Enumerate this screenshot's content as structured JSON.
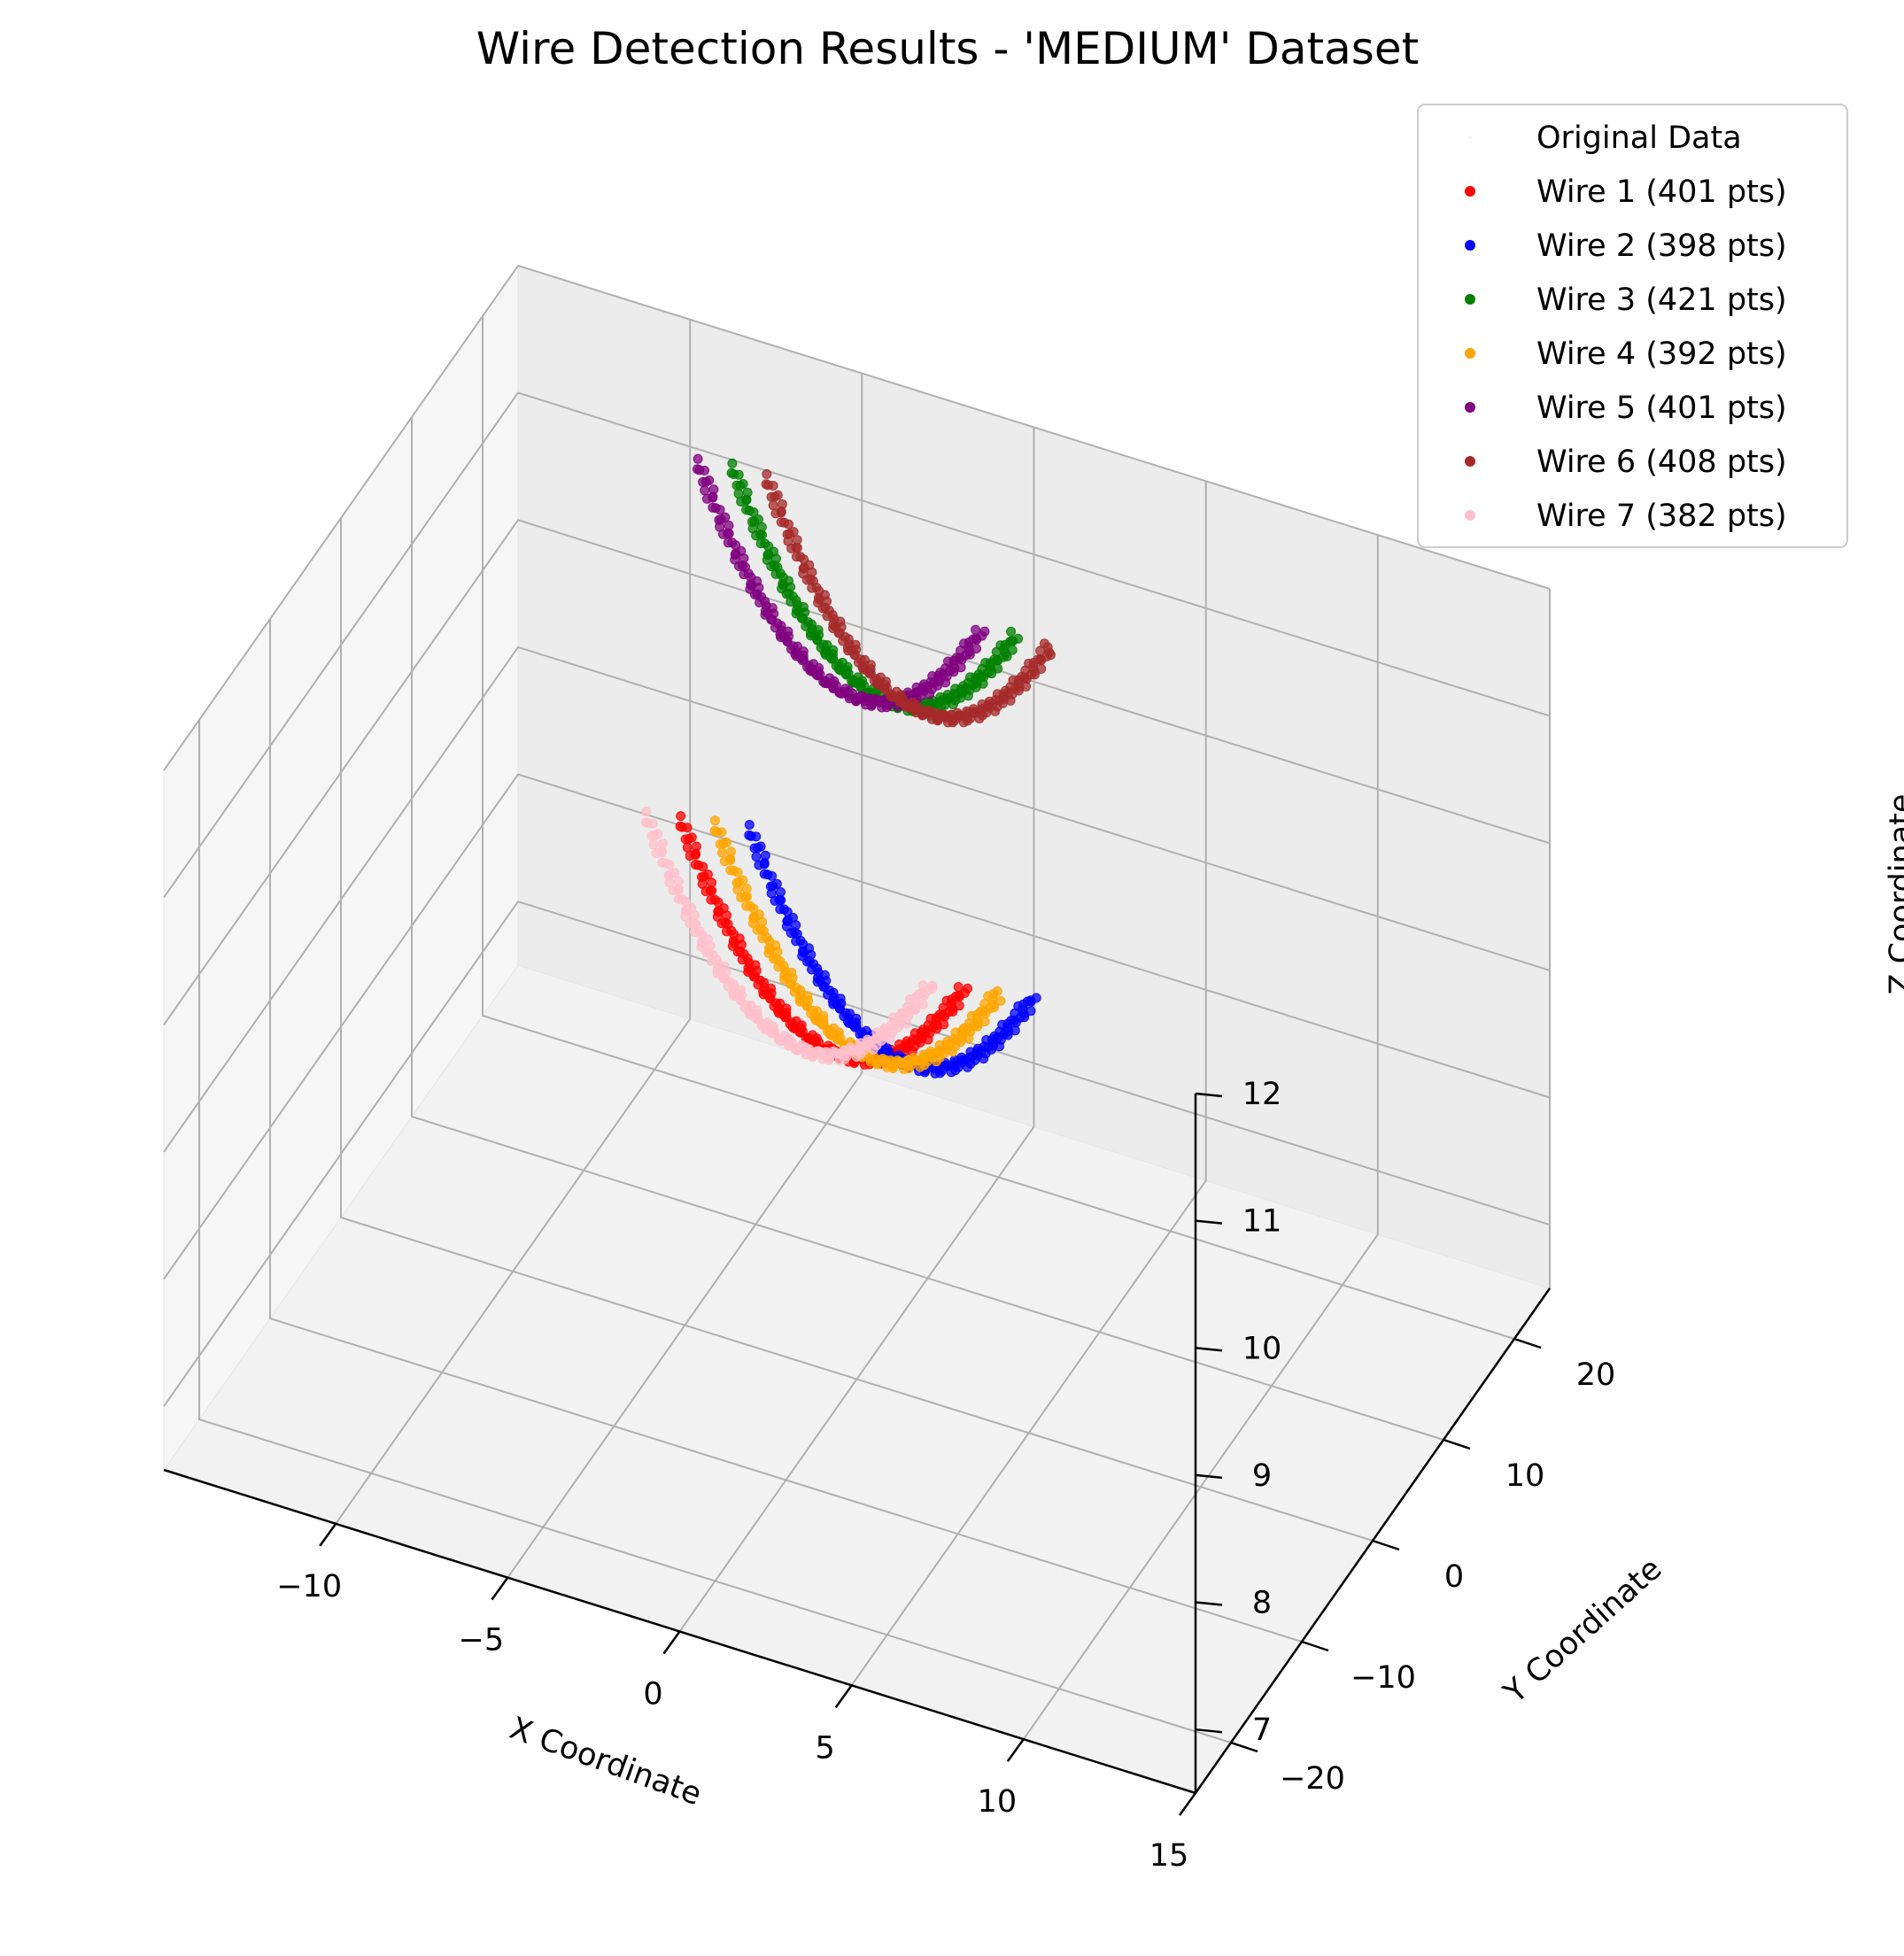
{
  "chart_data": {
    "type": "scatter",
    "title": "Wire Detection Results - 'MEDIUM' Dataset",
    "xlabel": "X Coordinate",
    "ylabel": "Y Coordinate",
    "zlabel": "Z Coordinate",
    "xlim": [
      -15,
      15
    ],
    "ylim": [
      -25,
      25
    ],
    "zlim": [
      6.5,
      12
    ],
    "x_ticks": [
      "−10",
      "−5",
      "0",
      "5",
      "10",
      "15"
    ],
    "y_ticks": [
      "−20",
      "−10",
      "0",
      "10",
      "20"
    ],
    "z_ticks": [
      "7",
      "8",
      "9",
      "10",
      "11",
      "12"
    ],
    "grid": true,
    "legend_position": "top-right",
    "series": [
      {
        "name": "Original Data",
        "color": "#f2f2f2",
        "x0": 0,
        "ymin": -20,
        "ymax": 20,
        "z_mid": 10,
        "count": 0
      },
      {
        "name": "Wire 1 (401 pts)",
        "color": "#ff0000",
        "x0": -1,
        "ymin": -20,
        "ymax": 20,
        "z_mid": 7.9,
        "count": 401
      },
      {
        "name": "Wire 2 (398 pts)",
        "color": "#0000ff",
        "x0": 1,
        "ymin": -20,
        "ymax": 20,
        "z_mid": 8.0,
        "count": 398
      },
      {
        "name": "Wire 3 (421 pts)",
        "color": "#008000",
        "x0": 0.5,
        "ymin": -20,
        "ymax": 20,
        "z_mid": 10.8,
        "count": 421
      },
      {
        "name": "Wire 4 (392 pts)",
        "color": "#ffa500",
        "x0": 0,
        "ymin": -20,
        "ymax": 20,
        "z_mid": 7.95,
        "count": 392
      },
      {
        "name": "Wire 5 (401 pts)",
        "color": "#800080",
        "x0": -0.5,
        "ymin": -20,
        "ymax": 20,
        "z_mid": 10.75,
        "count": 401
      },
      {
        "name": "Wire 6 (408 pts)",
        "color": "#a52a2a",
        "x0": 1.5,
        "ymin": -20,
        "ymax": 20,
        "z_mid": 10.8,
        "count": 408
      },
      {
        "name": "Wire 7 (382 pts)",
        "color": "#ffc0cb",
        "x0": -2,
        "ymin": -20,
        "ymax": 20,
        "z_mid": 7.85,
        "count": 382
      }
    ]
  }
}
